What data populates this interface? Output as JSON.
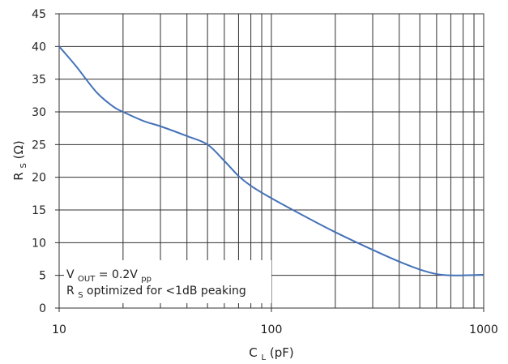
{
  "chart_data": {
    "type": "line",
    "title": "",
    "x_scale": "log",
    "xlim": [
      10,
      1000
    ],
    "ylim": [
      0,
      45
    ],
    "x_ticks": [
      10,
      100,
      1000
    ],
    "x_tick_labels": [
      "10",
      "100",
      "1000"
    ],
    "y_ticks": [
      0,
      5,
      10,
      15,
      20,
      25,
      30,
      35,
      40,
      45
    ],
    "y_tick_labels": [
      "0",
      "5",
      "10",
      "15",
      "20",
      "25",
      "30",
      "35",
      "40",
      "45"
    ],
    "grid": true,
    "xlabel": {
      "main": "C",
      "sub": "L",
      "suffix": " (pF)"
    },
    "ylabel": {
      "main": "R",
      "sub": "S",
      "suffix": " (Ω)"
    },
    "series": [
      {
        "x": [
          10,
          12,
          15,
          18,
          20,
          25,
          30,
          40,
          50,
          60,
          70,
          80,
          100,
          150,
          200,
          300,
          400,
          500,
          600,
          700,
          800,
          1000
        ],
        "y": [
          40,
          37,
          33,
          30.8,
          30,
          28.6,
          27.8,
          26.3,
          25,
          22.5,
          20.2,
          18.7,
          16.8,
          13.7,
          11.6,
          8.9,
          7.1,
          5.9,
          5.2,
          5.0,
          5.0,
          5.1
        ],
        "color": "#4472b8"
      }
    ],
    "annotation": {
      "line1_main": "V",
      "line1_sub": "OUT",
      "line1_eq": " = 0.2V",
      "line1_sub2": "pp",
      "line2_main": "R",
      "line2_sub": "S",
      "line2_rest": " optimized for <1dB peaking"
    },
    "colors": {
      "grid": "#303030",
      "axis": "#303030",
      "line": "#4472b8"
    }
  }
}
